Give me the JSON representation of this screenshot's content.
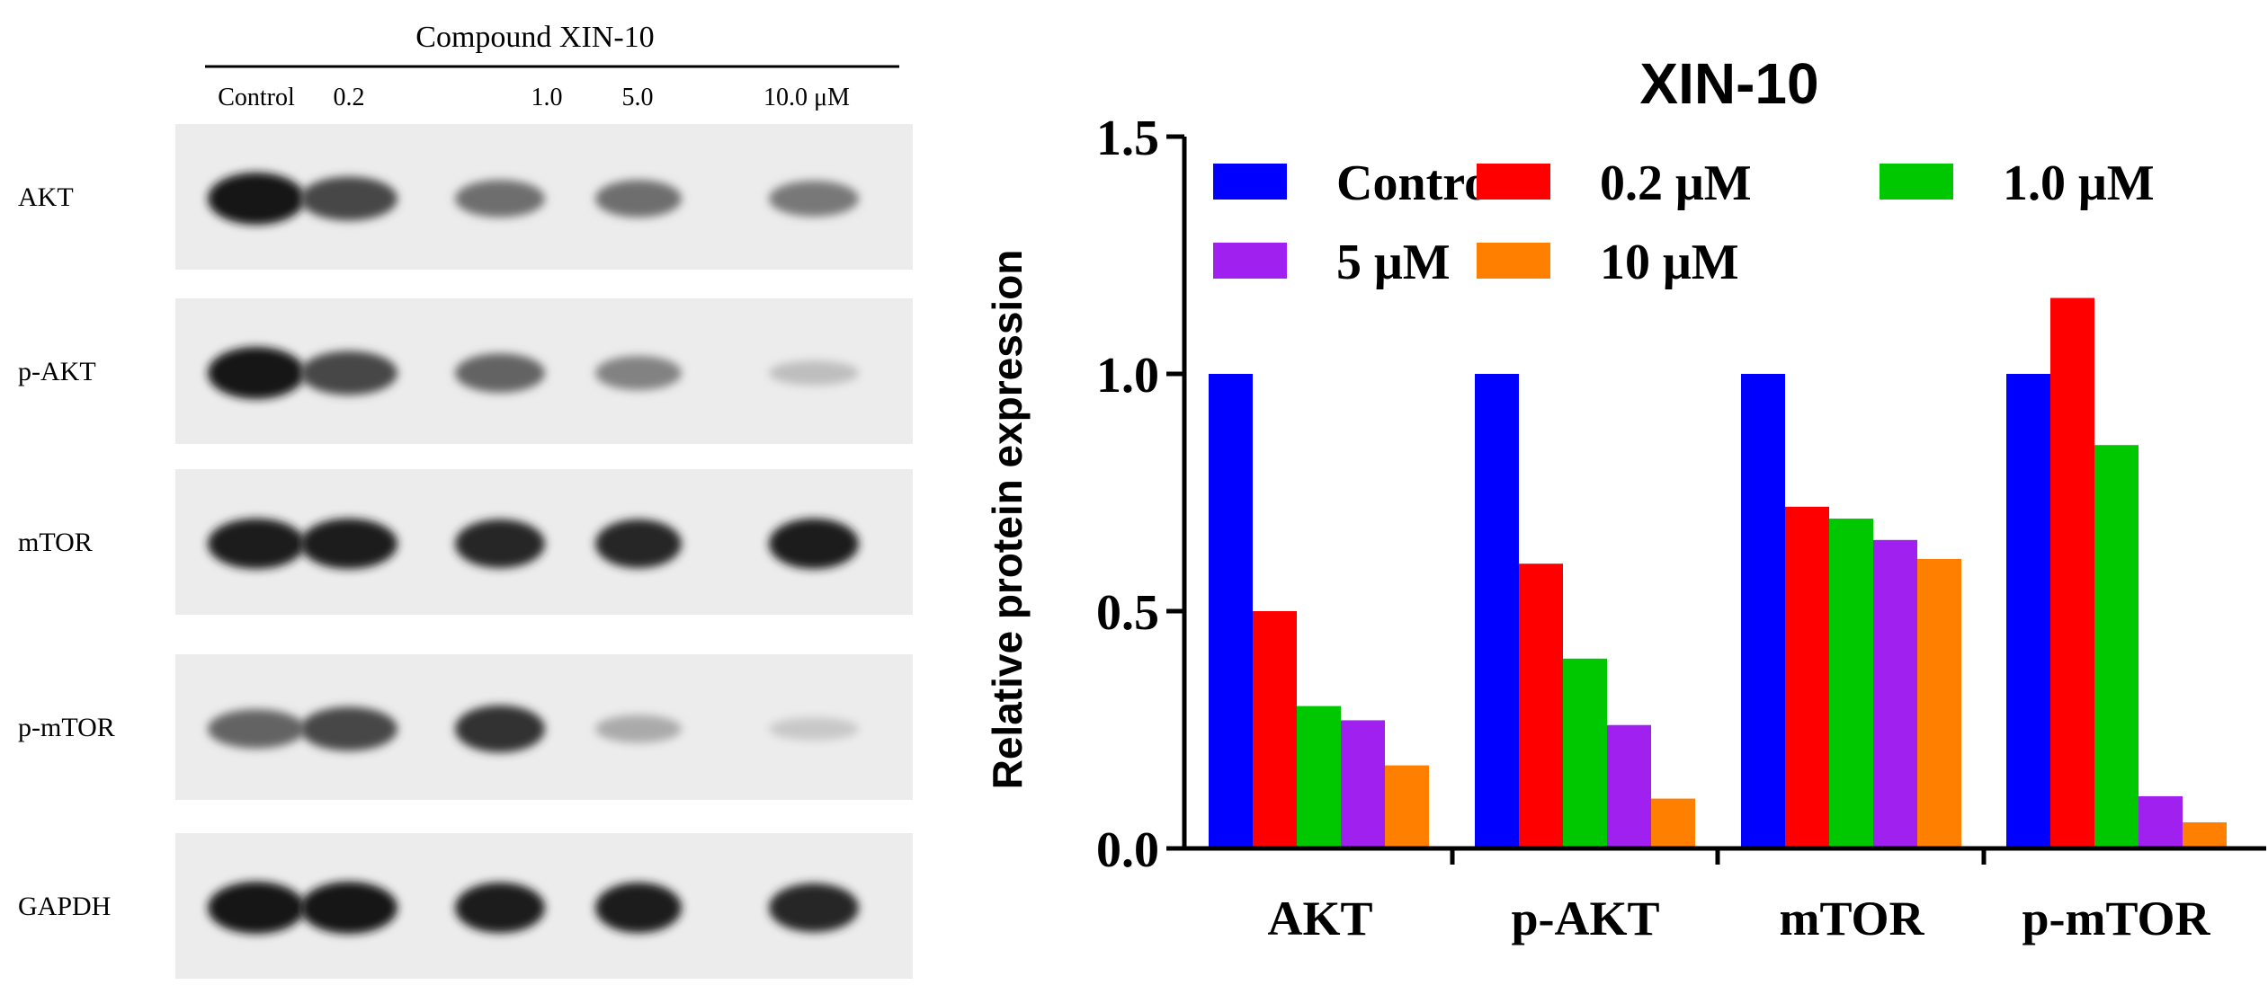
{
  "blot": {
    "compound_label": "Compound XIN-10",
    "lanes": [
      "Control",
      "0.2",
      "1.0",
      "5.0",
      "10.0 μM"
    ],
    "rows": [
      {
        "label": "AKT",
        "intensities": [
          1.0,
          0.75,
          0.55,
          0.55,
          0.5
        ]
      },
      {
        "label": "p-AKT",
        "intensities": [
          1.0,
          0.75,
          0.6,
          0.45,
          0.15
        ]
      },
      {
        "label": "mTOR",
        "intensities": [
          0.95,
          0.95,
          0.9,
          0.9,
          0.95
        ]
      },
      {
        "label": "p-mTOR",
        "intensities": [
          0.6,
          0.75,
          0.85,
          0.25,
          0.1
        ]
      },
      {
        "label": "GAPDH",
        "intensities": [
          1.0,
          1.0,
          0.95,
          0.95,
          0.9
        ]
      }
    ]
  },
  "chart_data": {
    "type": "bar",
    "title": "XIN-10",
    "xlabel": "",
    "ylabel": "Relative protein expression",
    "ylim": [
      0,
      1.5
    ],
    "yticks": [
      "0.0",
      "0.5",
      "1.0",
      "1.5"
    ],
    "categories": [
      "AKT",
      "p-AKT",
      "mTOR",
      "p-mTOR"
    ],
    "legend_position": "top",
    "series": [
      {
        "name": "Control",
        "color": "#0000ff",
        "values": [
          1.0,
          1.0,
          1.0,
          1.0
        ]
      },
      {
        "name": "0.2 μM",
        "color": "#ff0000",
        "values": [
          0.5,
          0.6,
          0.72,
          1.16
        ]
      },
      {
        "name": "1.0 μM",
        "color": "#00c800",
        "values": [
          0.3,
          0.4,
          0.695,
          0.85
        ]
      },
      {
        "name": "5 μM",
        "color": "#a020f0",
        "values": [
          0.27,
          0.26,
          0.65,
          0.11
        ]
      },
      {
        "name": "10 μM",
        "color": "#ff8000",
        "values": [
          0.175,
          0.105,
          0.61,
          0.055
        ]
      }
    ]
  }
}
